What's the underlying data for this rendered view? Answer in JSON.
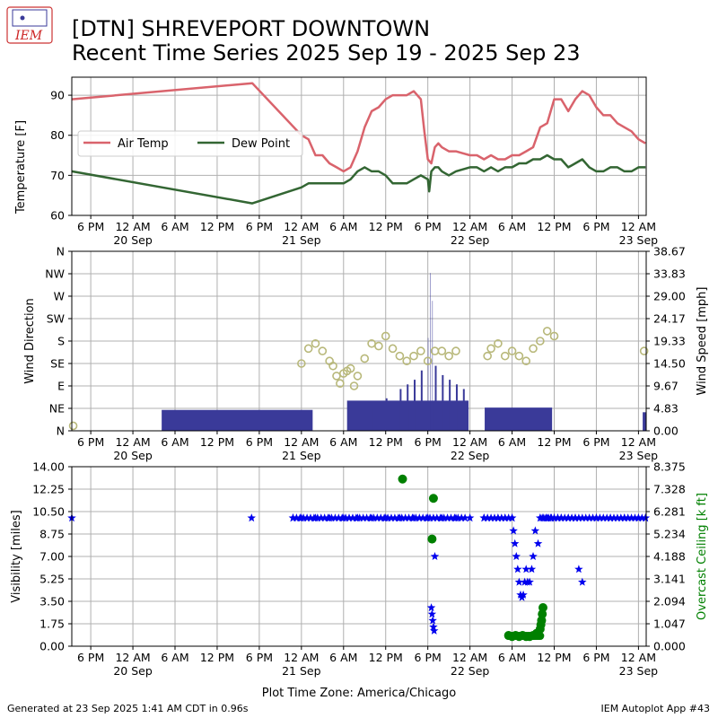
{
  "header": {
    "logo_text": "IEM",
    "title_line1": "[DTN] SHREVEPORT DOWNTOWN",
    "title_line2": "Recent Time Series 2025 Sep 19 - 2025 Sep 23"
  },
  "footer": {
    "generated": "Generated at 23 Sep 2025 1:41 AM CDT in 0.96s",
    "app": "IEM Autoplot App #43"
  },
  "x_axis": {
    "label": "Plot Time Zone: America/Chicago",
    "time_ticks": [
      "6 PM",
      "12 AM",
      "6 AM",
      "12 PM",
      "6 PM",
      "12 AM",
      "6 AM",
      "12 PM",
      "6 PM",
      "12 AM",
      "6 AM",
      "12 PM",
      "6 PM",
      "12 AM"
    ],
    "time_tick_hours": [
      18,
      24,
      30,
      36,
      42,
      48,
      54,
      60,
      66,
      72,
      78,
      84,
      90,
      96
    ],
    "date_ticks": [
      "20 Sep",
      "21 Sep",
      "22 Sep",
      "23 Sep"
    ],
    "date_tick_hours": [
      24,
      48,
      72,
      96
    ],
    "range_hours": [
      15.3,
      97.1
    ],
    "hour_origin_note": "hours after 19 Sep 00:00 CDT"
  },
  "colors": {
    "air_temp": "#d9636c",
    "dew_point": "#336633",
    "wind_bar": "#3a3a99",
    "wind_dir": "#b8b87a",
    "visibility": "#0000ee",
    "ceiling": "#008000",
    "ceiling_axis_label": "#008000"
  },
  "chart_data": [
    {
      "type": "line",
      "ylabel": "Temperature [F]",
      "ylim": [
        60,
        94.5
      ],
      "yticks": [
        60,
        70,
        80,
        90
      ],
      "grid": true,
      "legend_position": "center-left",
      "series": [
        {
          "name": "Air Temp",
          "x": [
            15.3,
            41,
            48,
            49,
            50,
            51,
            52,
            53,
            54,
            55,
            56,
            57,
            58,
            59,
            60,
            61,
            62,
            63,
            64,
            65,
            65.5,
            66,
            66.5,
            67,
            67.5,
            68,
            69,
            70,
            71,
            72,
            73,
            74,
            75,
            76,
            77,
            78,
            79,
            80,
            81,
            82,
            83,
            84,
            85,
            86,
            87,
            88,
            89,
            90,
            91,
            92,
            93,
            94,
            95,
            96,
            97
          ],
          "y": [
            89,
            93,
            80,
            79,
            75,
            75,
            73,
            72,
            71,
            72,
            76,
            82,
            86,
            87,
            89,
            90,
            90,
            90,
            91,
            89,
            81,
            74,
            73,
            77,
            78,
            77,
            76,
            76,
            75.5,
            75,
            75,
            74,
            75,
            74,
            74,
            75,
            75,
            76,
            77,
            82,
            83,
            89,
            89,
            86,
            89,
            91,
            90,
            87,
            85,
            85,
            83,
            82,
            81,
            79,
            78
          ]
        },
        {
          "name": "Dew Point",
          "x": [
            15.3,
            41,
            48,
            49,
            50,
            51,
            52,
            53,
            54,
            55,
            56,
            57,
            58,
            59,
            60,
            61,
            62,
            63,
            64,
            65,
            66,
            66.2,
            66.5,
            67,
            67.5,
            68,
            69,
            70,
            71,
            72,
            73,
            74,
            75,
            76,
            77,
            78,
            79,
            80,
            81,
            82,
            83,
            84,
            85,
            86,
            87,
            88,
            89,
            90,
            91,
            92,
            93,
            94,
            95,
            96,
            97
          ],
          "y": [
            71,
            63,
            67,
            68,
            68,
            68,
            68,
            68,
            68,
            69,
            71,
            72,
            71,
            71,
            70,
            68,
            68,
            68,
            69,
            70,
            69,
            66,
            71,
            72,
            72,
            71,
            70,
            71,
            71.5,
            72,
            72,
            71,
            72,
            71,
            72,
            72,
            73,
            73,
            74,
            74,
            75,
            74,
            74,
            72,
            73,
            74,
            72,
            71,
            71,
            72,
            72,
            71,
            71,
            72,
            72
          ]
        }
      ]
    },
    {
      "type": "bar",
      "ylabel": "Wind Direction",
      "ylabel_right": "Wind Speed [mph]",
      "ylim": [
        0,
        360
      ],
      "direction_ticks": [
        "N",
        "NE",
        "E",
        "SE",
        "S",
        "SW",
        "W",
        "NW",
        "N"
      ],
      "direction_tick_degrees": [
        0,
        45,
        90,
        135,
        180,
        225,
        270,
        315,
        360
      ],
      "speed_ylim": [
        0,
        38.67
      ],
      "speed_ticks": [
        "0.00",
        "4.83",
        "9.67",
        "14.50",
        "19.33",
        "24.17",
        "29.00",
        "33.83",
        "38.67"
      ],
      "grid": true,
      "speed_runs": [
        {
          "name": "Wind Speed",
          "x_start": 28.1,
          "x_end": 49.6,
          "value": 4.5
        },
        {
          "name": "Wind Speed",
          "x_start": 54.5,
          "x_end": 71.8,
          "value": 6.5
        },
        {
          "name": "Wind Speed",
          "x_start": 74.1,
          "x_end": 83.7,
          "value": 5.0
        },
        {
          "name": "Wind Speed",
          "x_start": 96.6,
          "x_end": 97.1,
          "value": 4.0
        }
      ],
      "speed_peaks": {
        "x": [
          58,
          60,
          62,
          63,
          64,
          65,
          66,
          66.3,
          66.6,
          67,
          68,
          69,
          70,
          71
        ],
        "y": [
          5.5,
          7,
          9,
          10,
          11,
          13,
          20,
          34,
          28,
          14,
          12,
          11,
          10,
          9
        ]
      },
      "direction_points": {
        "x": [
          15.5,
          48,
          49,
          50,
          51,
          52,
          52.5,
          53,
          53.5,
          54,
          54.5,
          55,
          55.5,
          56,
          57,
          58,
          59,
          60,
          61,
          62,
          63,
          64,
          65,
          66,
          67,
          68,
          69,
          70,
          74.5,
          75,
          76,
          77,
          78,
          79,
          80,
          81,
          82,
          83,
          84,
          96.8
        ],
        "y": [
          10,
          135,
          165,
          175,
          160,
          140,
          130,
          110,
          95,
          115,
          120,
          125,
          90,
          110,
          145,
          175,
          170,
          190,
          165,
          150,
          140,
          150,
          160,
          140,
          160,
          160,
          150,
          160,
          150,
          165,
          175,
          150,
          160,
          150,
          140,
          165,
          180,
          200,
          190,
          160
        ]
      }
    },
    {
      "type": "scatter",
      "ylabel": "Visibility [miles]",
      "ylabel_right": "Overcast Ceiling [k ft]",
      "ylim": [
        0,
        14
      ],
      "yticks": [
        "0.00",
        "1.75",
        "3.50",
        "5.25",
        "7.00",
        "8.75",
        "10.50",
        "12.25",
        "14.00"
      ],
      "ceiling_ylim": [
        0,
        8.375
      ],
      "ceiling_ticks": [
        "0.000",
        "1.047",
        "2.094",
        "3.141",
        "4.188",
        "5.234",
        "6.281",
        "7.328",
        "8.375"
      ],
      "grid": true,
      "series": [
        {
          "name": "Visibility",
          "x": [
            15.3,
            40.9,
            46.8,
            48,
            50,
            52,
            54,
            56,
            58,
            60,
            62,
            64,
            66,
            66.5,
            66.6,
            66.7,
            66.8,
            66.9,
            67,
            68,
            70,
            72,
            74,
            76,
            77,
            78,
            78.2,
            78.4,
            78.6,
            78.8,
            79,
            79.2,
            79.4,
            79.6,
            79.8,
            80,
            80.2,
            80.5,
            80.8,
            81,
            81.3,
            81.7,
            82,
            82.3,
            82.8,
            83.2,
            83.6,
            84,
            84.5,
            85,
            86,
            87,
            87.5,
            88,
            90,
            92,
            94,
            96,
            97
          ],
          "y": [
            10,
            10,
            10,
            10,
            10,
            10,
            10,
            10,
            10,
            10,
            10,
            10,
            10,
            3,
            2.5,
            2,
            1.5,
            1.2,
            7,
            10,
            10,
            10,
            10,
            10,
            10,
            10,
            9,
            8,
            7,
            6,
            5,
            4,
            3.8,
            4,
            5,
            6,
            5,
            5,
            6,
            7,
            9,
            8,
            10,
            10,
            10,
            10,
            10,
            10,
            10,
            10,
            10,
            10,
            6,
            5,
            10,
            10,
            10,
            10,
            10
          ]
        },
        {
          "name": "Ceiling",
          "x": [
            62.4,
            66.8,
            66.6,
            77.5,
            78,
            78.5,
            79,
            79.5,
            80,
            80.5,
            81,
            81.5,
            82,
            82.1,
            82.2,
            82.3,
            82.4
          ],
          "y": [
            7.8,
            6.9,
            5.0,
            0.5,
            0.45,
            0.5,
            0.45,
            0.5,
            0.45,
            0.45,
            0.5,
            0.6,
            0.8,
            1.0,
            1.2,
            1.5,
            1.8
          ]
        }
      ]
    }
  ]
}
